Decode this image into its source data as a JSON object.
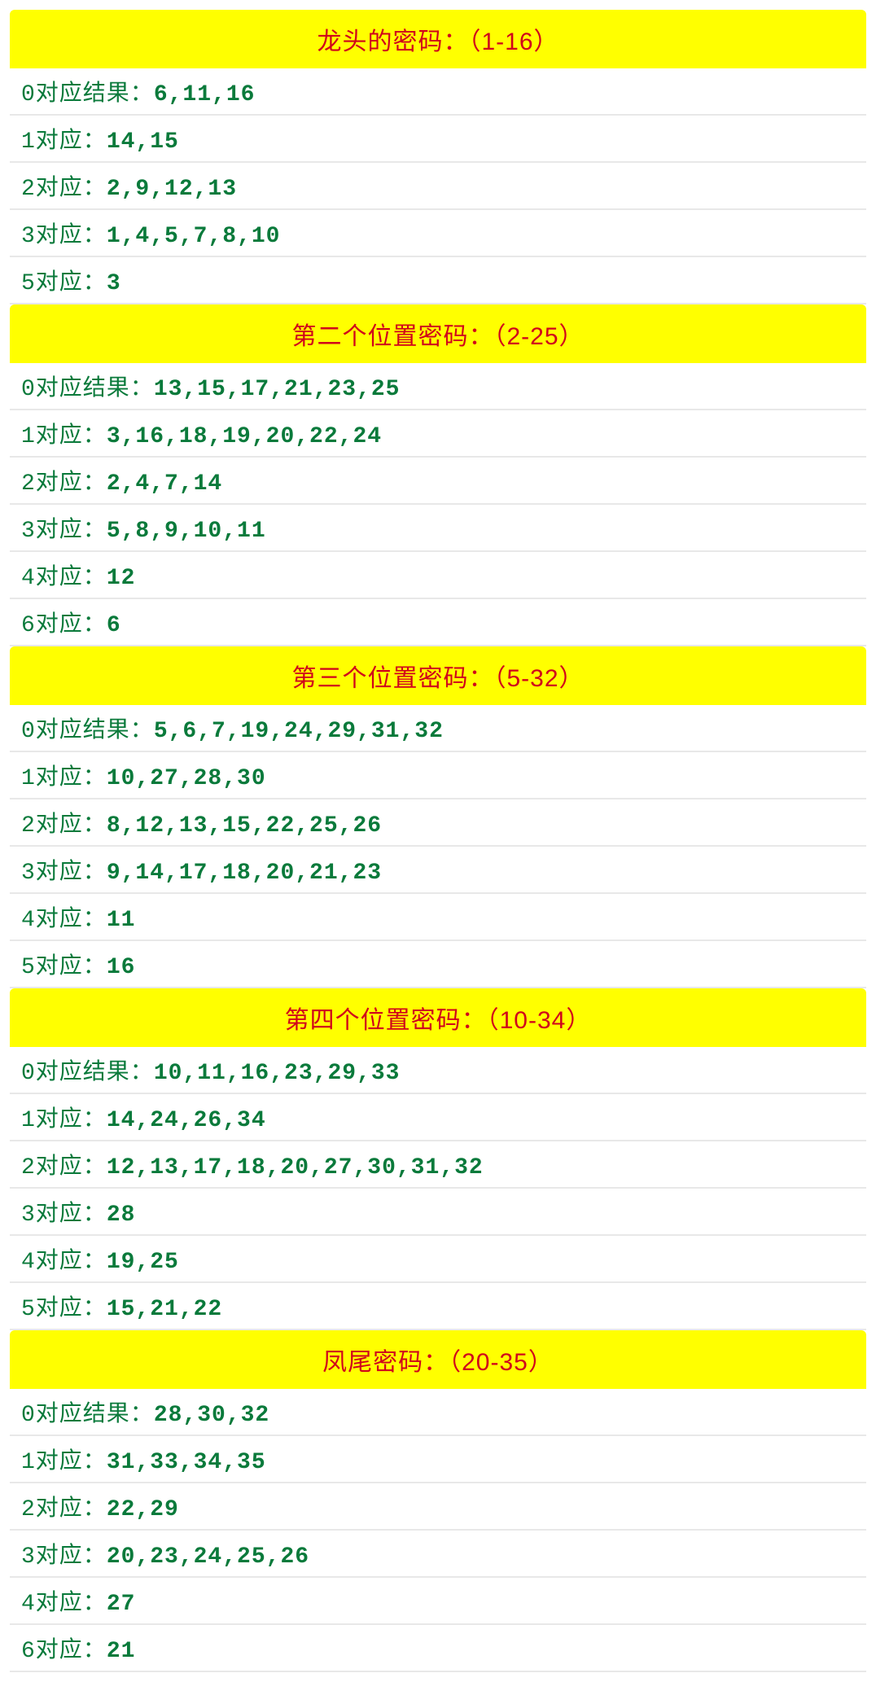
{
  "style": {
    "header_bg": "#ffff00",
    "header_color": "#d0021b",
    "row_color": "#0a7a3b",
    "row_bg": "#ffffff",
    "border_color": "#e8e8e8",
    "header_fontsize": 30,
    "row_fontsize": 28
  },
  "sections": [
    {
      "title": "龙头的密码：（1-16）",
      "rows": [
        {
          "label": "0对应结果：",
          "nums": "6,11,16"
        },
        {
          "label": "1对应：",
          "nums": "14,15"
        },
        {
          "label": "2对应：",
          "nums": "2,9,12,13"
        },
        {
          "label": "3对应：",
          "nums": "1,4,5,7,8,10"
        },
        {
          "label": "5对应：",
          "nums": "3"
        }
      ]
    },
    {
      "title": "第二个位置密码：（2-25）",
      "rows": [
        {
          "label": "0对应结果：",
          "nums": "13,15,17,21,23,25"
        },
        {
          "label": "1对应：",
          "nums": "3,16,18,19,20,22,24"
        },
        {
          "label": "2对应：",
          "nums": "2,4,7,14"
        },
        {
          "label": "3对应：",
          "nums": "5,8,9,10,11"
        },
        {
          "label": "4对应：",
          "nums": "12"
        },
        {
          "label": "6对应：",
          "nums": "6"
        }
      ]
    },
    {
      "title": "第三个位置密码：（5-32）",
      "rows": [
        {
          "label": "0对应结果：",
          "nums": "5,6,7,19,24,29,31,32"
        },
        {
          "label": "1对应：",
          "nums": "10,27,28,30"
        },
        {
          "label": "2对应：",
          "nums": "8,12,13,15,22,25,26"
        },
        {
          "label": "3对应：",
          "nums": "9,14,17,18,20,21,23"
        },
        {
          "label": "4对应：",
          "nums": "11"
        },
        {
          "label": "5对应：",
          "nums": "16"
        }
      ]
    },
    {
      "title": "第四个位置密码：（10-34）",
      "rows": [
        {
          "label": "0对应结果：",
          "nums": "10,11,16,23,29,33"
        },
        {
          "label": "1对应：",
          "nums": "14,24,26,34"
        },
        {
          "label": "2对应：",
          "nums": "12,13,17,18,20,27,30,31,32"
        },
        {
          "label": "3对应：",
          "nums": "28"
        },
        {
          "label": "4对应：",
          "nums": "19,25"
        },
        {
          "label": "5对应：",
          "nums": "15,21,22"
        }
      ]
    },
    {
      "title": "凤尾密码：（20-35）",
      "rows": [
        {
          "label": "0对应结果：",
          "nums": "28,30,32"
        },
        {
          "label": "1对应：",
          "nums": "31,33,34,35"
        },
        {
          "label": "2对应：",
          "nums": "22,29"
        },
        {
          "label": "3对应：",
          "nums": "20,23,24,25,26"
        },
        {
          "label": "4对应：",
          "nums": "27"
        },
        {
          "label": "6对应：",
          "nums": "21"
        }
      ]
    }
  ]
}
